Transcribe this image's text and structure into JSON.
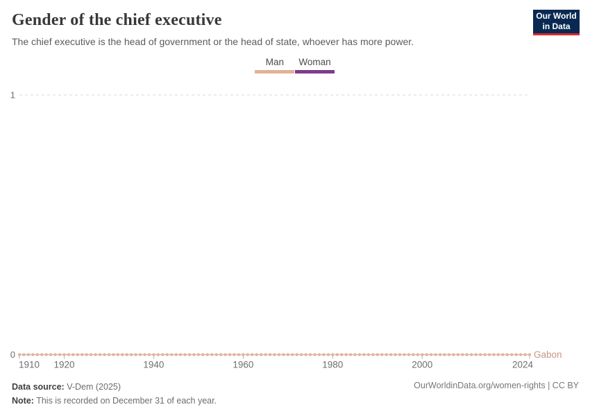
{
  "header": {
    "title": "Gender of the chief executive",
    "subtitle": "The chief executive is the head of government or the head of state, whoever has more power.",
    "logo": {
      "line1": "Our World",
      "line2": "in Data"
    }
  },
  "legend": [
    {
      "label": "Man",
      "color": "#DFB29A"
    },
    {
      "label": "Woman",
      "color": "#7D3C8D"
    }
  ],
  "chart_data": {
    "type": "line",
    "title": "Gender of the chief executive",
    "x_range": [
      1910,
      2024
    ],
    "x_ticks": [
      1910,
      1920,
      1940,
      1960,
      1980,
      2000,
      2024
    ],
    "ylim": [
      0,
      1
    ],
    "y_ticks": [
      0,
      1
    ],
    "grid": "dashed horizontal gridline at y=1",
    "legend_position": "top-center",
    "legend": [
      {
        "label": "Man",
        "color": "#DFB29A"
      },
      {
        "label": "Woman",
        "color": "#7D3C8D"
      }
    ],
    "series": [
      {
        "name": "Gabon",
        "category": "Man",
        "color": "#DFB29A",
        "label_color": "#C4987E",
        "marker": "circle",
        "x_start": 1910,
        "x_end": 2024,
        "value_every_year": 0
      }
    ],
    "colors": {
      "gridline": "#d9d9d9",
      "axis_text": "#6e6e6e",
      "tick": "#b0b0b0"
    }
  },
  "footer": {
    "data_source_label": "Data source:",
    "data_source_value": " V-Dem (2025)",
    "note_label": "Note:",
    "note_value": " This is recorded on December 31 of each year.",
    "attribution": "OurWorldinData.org/women-rights | CC BY"
  }
}
